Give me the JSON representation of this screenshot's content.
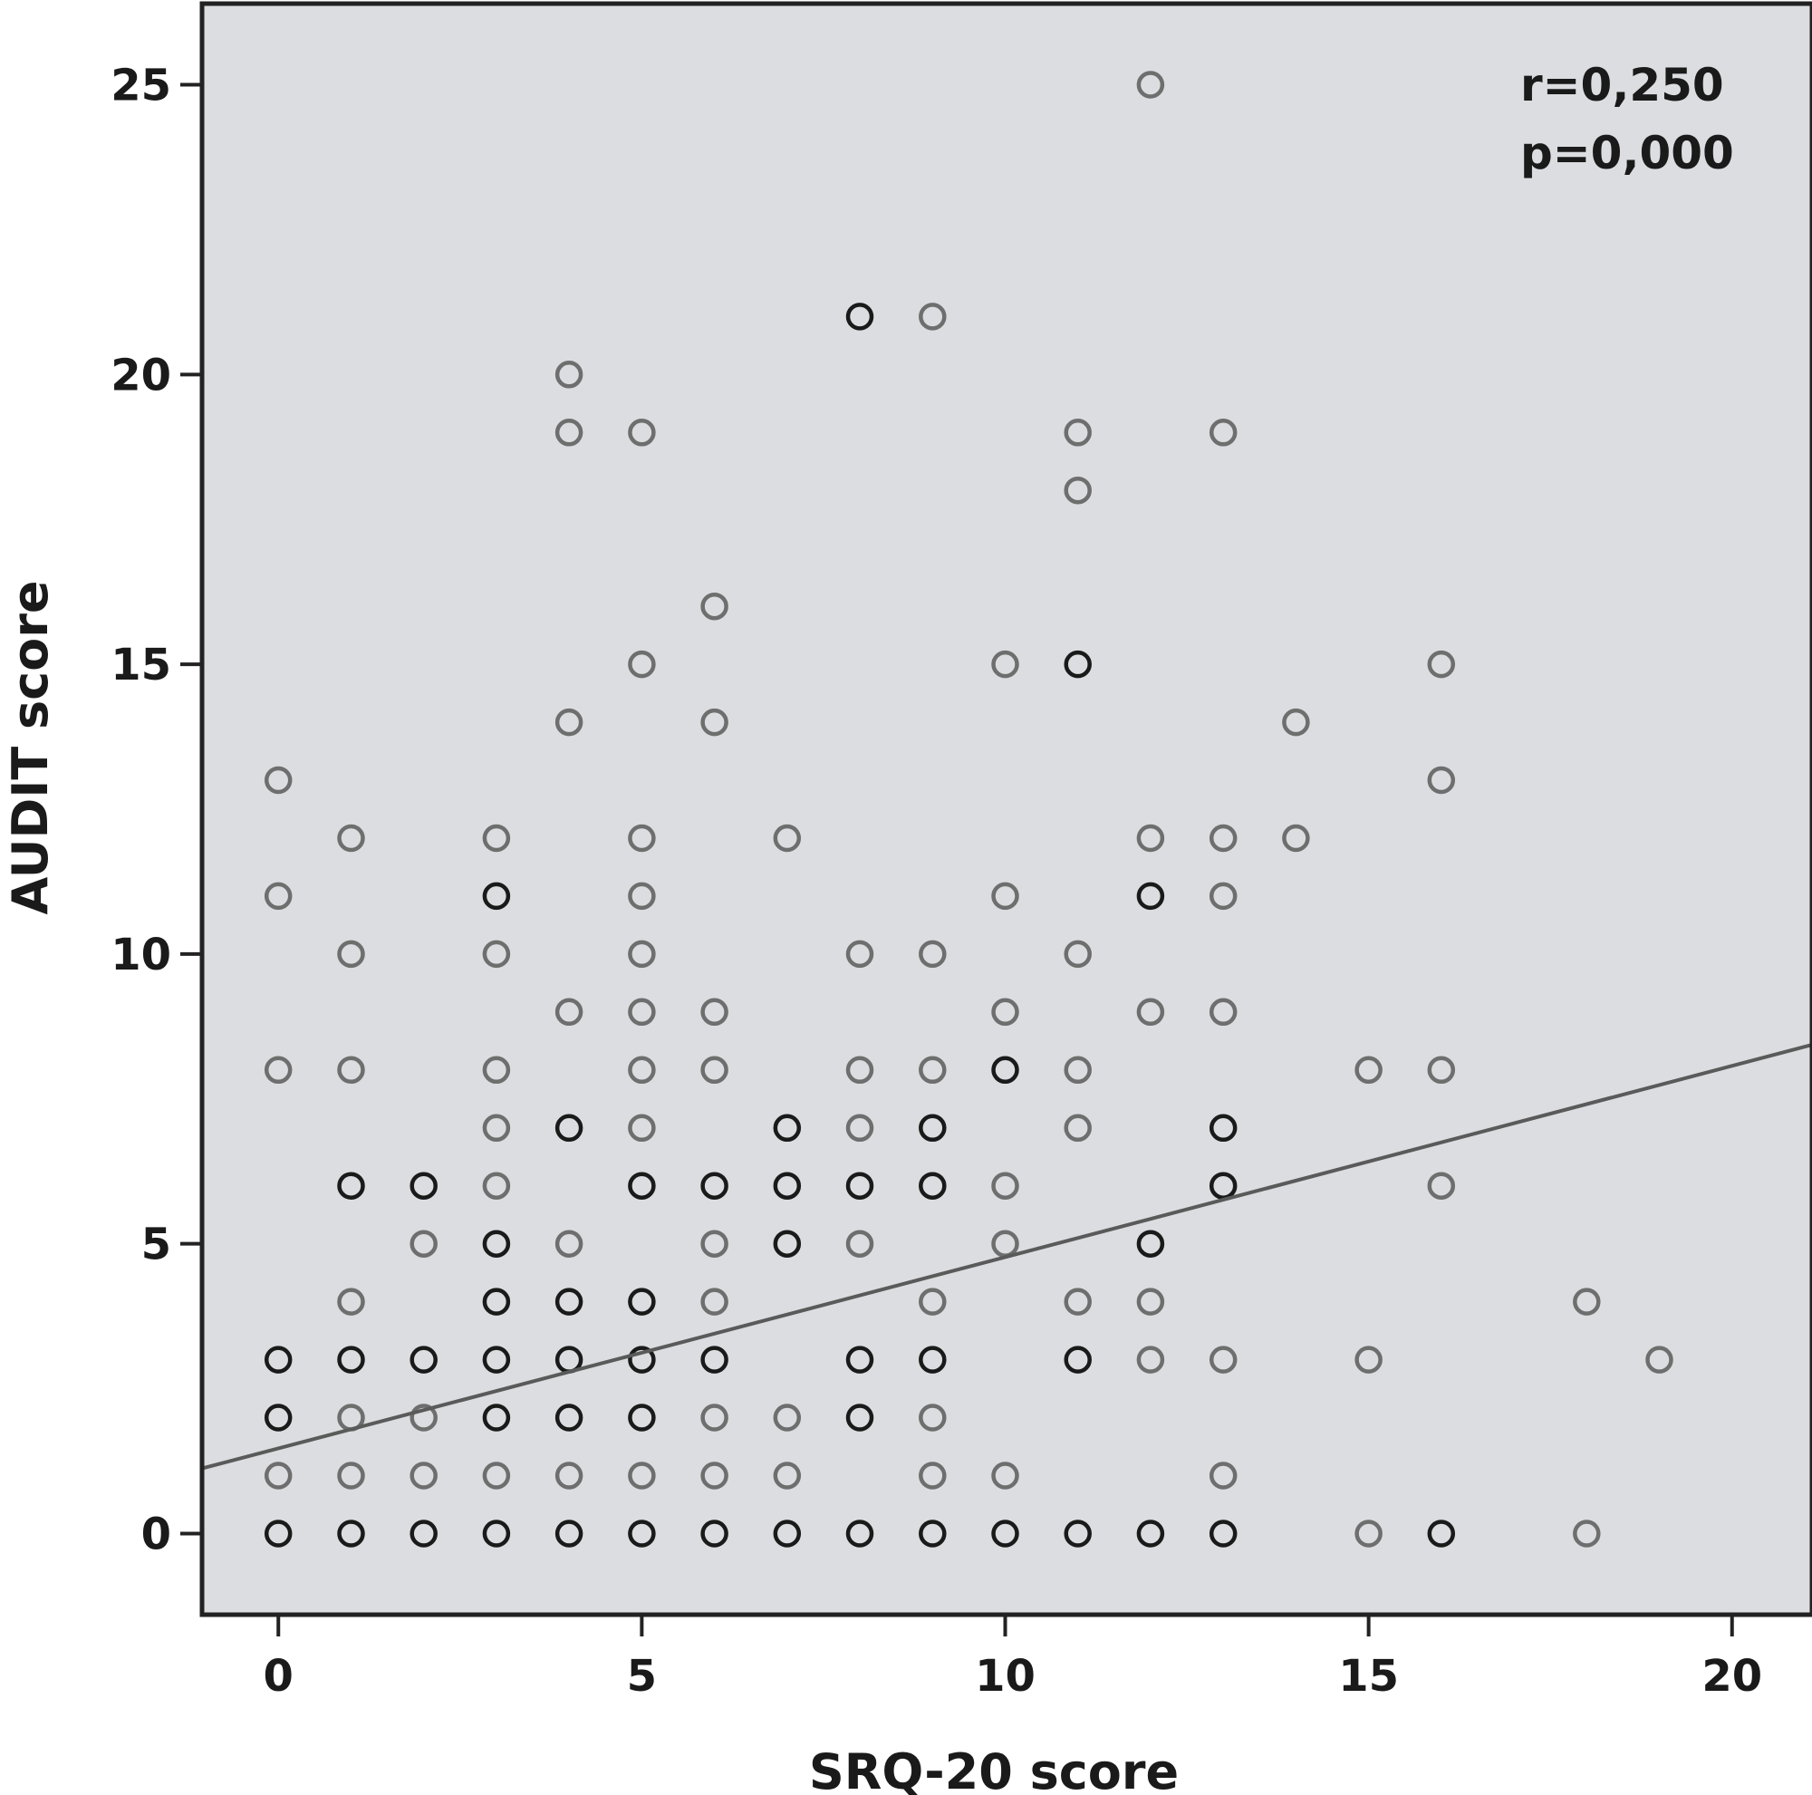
{
  "chart_data": {
    "type": "scatter",
    "title": "",
    "xlabel": "SRQ-20 score",
    "ylabel": "AUDIT score",
    "xlim": [
      -1.05,
      21.1
    ],
    "ylim": [
      -1.4,
      26.4
    ],
    "x_ticks": [
      0,
      5,
      10,
      15,
      20
    ],
    "y_ticks": [
      0,
      5,
      10,
      15,
      20,
      25
    ],
    "x_tick_labels": [
      "0",
      "5",
      "10",
      "15",
      "20"
    ],
    "y_tick_labels": [
      "0",
      "5",
      "10",
      "15",
      "20",
      "25"
    ],
    "grid": false,
    "legend": "none",
    "annotations": [
      {
        "text": "r=0,250",
        "position": "top-right"
      },
      {
        "text": "p=0,000",
        "position": "top-right"
      }
    ],
    "regression_line": {
      "intercept": 1.47,
      "slope": 0.33
    },
    "colors": {
      "plot_background": "#dcdde0",
      "frame": "#222222",
      "point_single": "#6e6e6e",
      "point_overlap": "#1a1a1a",
      "fit_line": "#5a5a5a"
    },
    "series": [
      {
        "values_style": "single",
        "points": [
          [
            0,
            13
          ],
          [
            0,
            11
          ],
          [
            0,
            8
          ],
          [
            0,
            1
          ],
          [
            1,
            12
          ],
          [
            1,
            10
          ],
          [
            1,
            8
          ],
          [
            1,
            4
          ],
          [
            1,
            2
          ],
          [
            1,
            1
          ],
          [
            2,
            5
          ],
          [
            2,
            2
          ],
          [
            2,
            1
          ],
          [
            3,
            12
          ],
          [
            3,
            10
          ],
          [
            3,
            8
          ],
          [
            3,
            7
          ],
          [
            3,
            6
          ],
          [
            3,
            1
          ],
          [
            4,
            20
          ],
          [
            4,
            19
          ],
          [
            4,
            14
          ],
          [
            4,
            9
          ],
          [
            4,
            5
          ],
          [
            4,
            1
          ],
          [
            5,
            19
          ],
          [
            5,
            15
          ],
          [
            5,
            12
          ],
          [
            5,
            11
          ],
          [
            5,
            10
          ],
          [
            5,
            9
          ],
          [
            5,
            8
          ],
          [
            5,
            7
          ],
          [
            5,
            1
          ],
          [
            6,
            16
          ],
          [
            6,
            14
          ],
          [
            6,
            9
          ],
          [
            6,
            8
          ],
          [
            6,
            5
          ],
          [
            6,
            4
          ],
          [
            6,
            2
          ],
          [
            6,
            1
          ],
          [
            7,
            12
          ],
          [
            7,
            2
          ],
          [
            7,
            1
          ],
          [
            8,
            10
          ],
          [
            8,
            8
          ],
          [
            8,
            7
          ],
          [
            8,
            5
          ],
          [
            9,
            21
          ],
          [
            9,
            10
          ],
          [
            9,
            8
          ],
          [
            9,
            4
          ],
          [
            9,
            2
          ],
          [
            9,
            1
          ],
          [
            10,
            15
          ],
          [
            10,
            11
          ],
          [
            10,
            9
          ],
          [
            10,
            6
          ],
          [
            10,
            5
          ],
          [
            10,
            1
          ],
          [
            11,
            19
          ],
          [
            11,
            18
          ],
          [
            11,
            10
          ],
          [
            11,
            8
          ],
          [
            11,
            7
          ],
          [
            11,
            4
          ],
          [
            12,
            25
          ],
          [
            12,
            12
          ],
          [
            12,
            9
          ],
          [
            12,
            4
          ],
          [
            12,
            3
          ],
          [
            13,
            19
          ],
          [
            13,
            12
          ],
          [
            13,
            11
          ],
          [
            13,
            9
          ],
          [
            13,
            3
          ],
          [
            13,
            1
          ],
          [
            14,
            14
          ],
          [
            14,
            12
          ],
          [
            15,
            8
          ],
          [
            15,
            3
          ],
          [
            15,
            0
          ],
          [
            16,
            15
          ],
          [
            16,
            13
          ],
          [
            16,
            8
          ],
          [
            16,
            6
          ],
          [
            18,
            4
          ],
          [
            18,
            0
          ],
          [
            19,
            3
          ]
        ]
      },
      {
        "values_style": "overlap",
        "points": [
          [
            0,
            3
          ],
          [
            0,
            2
          ],
          [
            0,
            0
          ],
          [
            1,
            6
          ],
          [
            1,
            3
          ],
          [
            1,
            0
          ],
          [
            2,
            6
          ],
          [
            2,
            3
          ],
          [
            2,
            0
          ],
          [
            3,
            11
          ],
          [
            3,
            5
          ],
          [
            3,
            4
          ],
          [
            3,
            3
          ],
          [
            3,
            2
          ],
          [
            3,
            0
          ],
          [
            4,
            7
          ],
          [
            4,
            4
          ],
          [
            4,
            3
          ],
          [
            4,
            2
          ],
          [
            4,
            0
          ],
          [
            5,
            6
          ],
          [
            5,
            4
          ],
          [
            5,
            3
          ],
          [
            5,
            2
          ],
          [
            5,
            0
          ],
          [
            6,
            6
          ],
          [
            6,
            3
          ],
          [
            6,
            0
          ],
          [
            7,
            7
          ],
          [
            7,
            6
          ],
          [
            7,
            5
          ],
          [
            7,
            0
          ],
          [
            8,
            21
          ],
          [
            8,
            6
          ],
          [
            8,
            3
          ],
          [
            8,
            2
          ],
          [
            8,
            0
          ],
          [
            9,
            7
          ],
          [
            9,
            6
          ],
          [
            9,
            3
          ],
          [
            9,
            0
          ],
          [
            10,
            8
          ],
          [
            10,
            0
          ],
          [
            11,
            15
          ],
          [
            11,
            3
          ],
          [
            11,
            0
          ],
          [
            12,
            11
          ],
          [
            12,
            5
          ],
          [
            12,
            0
          ],
          [
            13,
            7
          ],
          [
            13,
            6
          ],
          [
            13,
            0
          ],
          [
            16,
            0
          ]
        ]
      }
    ]
  }
}
